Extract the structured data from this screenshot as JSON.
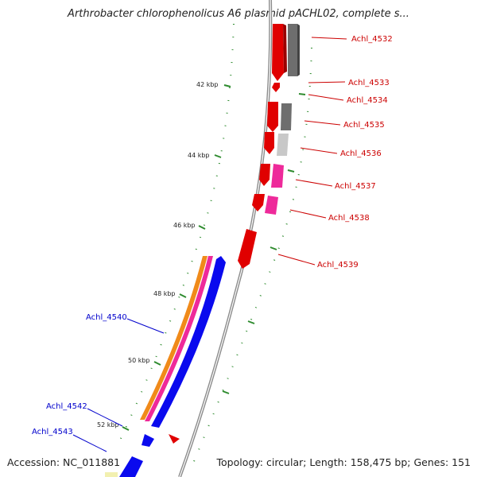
{
  "header": {
    "title": "Arthrobacter chlorophenolicus A6 plasmid pACHL02, complete s..."
  },
  "footer": {
    "accession": "Accession: NC_011881",
    "summary": "Topology: circular; Length: 158,475 bp; Genes: 151"
  },
  "ticks": [
    "42 kbp",
    "44 kbp",
    "46 kbp",
    "48 kbp",
    "50 kbp",
    "52 kbp"
  ],
  "gene_labels": {
    "achl_4532": "Achl_4532",
    "achl_4533": "Achl_4533",
    "achl_4534": "Achl_4534",
    "achl_4535": "Achl_4535",
    "achl_4536": "Achl_4536",
    "achl_4537": "Achl_4537",
    "achl_4538": "Achl_4538",
    "achl_4539": "Achl_4539",
    "achl_4540": "Achl_4540",
    "achl_4542": "Achl_4542",
    "achl_4543": "Achl_4543"
  },
  "colors": {
    "backbone": "#8c8c8c",
    "tick": "#2e8b2e",
    "forward_red": "#e00000",
    "gray": "#6e6e6e",
    "light_gray": "#c8c8c8",
    "pink": "#ee2a9a",
    "orange": "#f08a1a",
    "blue": "#0a0aee",
    "label_red": "#cc0000",
    "label_blue": "#0000cc"
  }
}
